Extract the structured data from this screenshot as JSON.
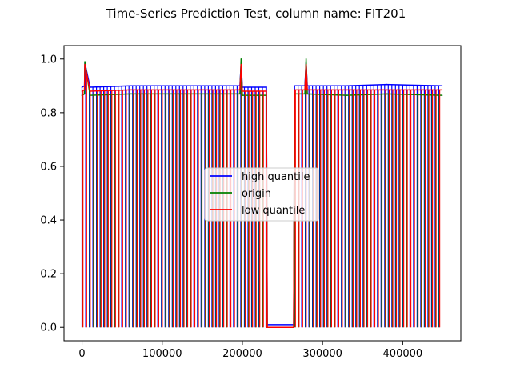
{
  "chart_data": {
    "type": "line",
    "title": "Time-Series Prediction Test, column name: FIT201",
    "xlabel": "",
    "ylabel": "",
    "xlim": [
      -22500,
      472500
    ],
    "ylim": [
      -0.05,
      1.05
    ],
    "xticks": [
      0,
      100000,
      200000,
      300000,
      400000
    ],
    "xtick_labels": [
      "0",
      "100000",
      "200000",
      "300000",
      "400000"
    ],
    "yticks": [
      0.0,
      0.2,
      0.4,
      0.6,
      0.8,
      1.0
    ],
    "ytick_labels": [
      "0.0",
      "0.2",
      "0.4",
      "0.6",
      "0.8",
      "1.0"
    ],
    "grid": false,
    "legend_position": "center",
    "series": [
      {
        "name": "high quantile",
        "color": "#0000ff",
        "x": [
          0,
          3000,
          3500,
          10000,
          60000,
          120000,
          180000,
          197000,
          198500,
          200000,
          230000,
          231000,
          264000,
          265000,
          278000,
          279500,
          281000,
          330000,
          380000,
          449000
        ],
        "y": [
          0.895,
          0.9,
          0.985,
          0.895,
          0.9,
          0.9,
          0.9,
          0.9,
          0.985,
          0.895,
          0.895,
          0.01,
          0.01,
          0.9,
          0.9,
          0.985,
          0.9,
          0.9,
          0.905,
          0.9
        ]
      },
      {
        "name": "origin",
        "color": "#008000",
        "x": [
          0,
          3000,
          3500,
          10000,
          60000,
          120000,
          180000,
          197000,
          198500,
          200000,
          230000,
          231000,
          264000,
          265000,
          278000,
          279500,
          281000,
          330000,
          380000,
          449000
        ],
        "y": [
          0.865,
          0.87,
          0.99,
          0.865,
          0.87,
          0.87,
          0.87,
          0.87,
          1.0,
          0.865,
          0.865,
          0.0,
          0.0,
          0.87,
          0.87,
          1.0,
          0.87,
          0.865,
          0.87,
          0.865
        ]
      },
      {
        "name": "low quantile",
        "color": "#ff0000",
        "x": [
          0,
          3000,
          3500,
          10000,
          60000,
          120000,
          180000,
          197000,
          198500,
          200000,
          230000,
          231000,
          264000,
          265000,
          278000,
          279500,
          281000,
          330000,
          380000,
          449000
        ],
        "y": [
          0.88,
          0.885,
          0.98,
          0.88,
          0.885,
          0.885,
          0.885,
          0.885,
          0.98,
          0.88,
          0.88,
          0.0,
          0.0,
          0.885,
          0.885,
          0.98,
          0.885,
          0.885,
          0.885,
          0.885
        ]
      }
    ],
    "drop_segments": [
      [
        0,
        231000
      ],
      [
        265000,
        449000
      ]
    ]
  }
}
